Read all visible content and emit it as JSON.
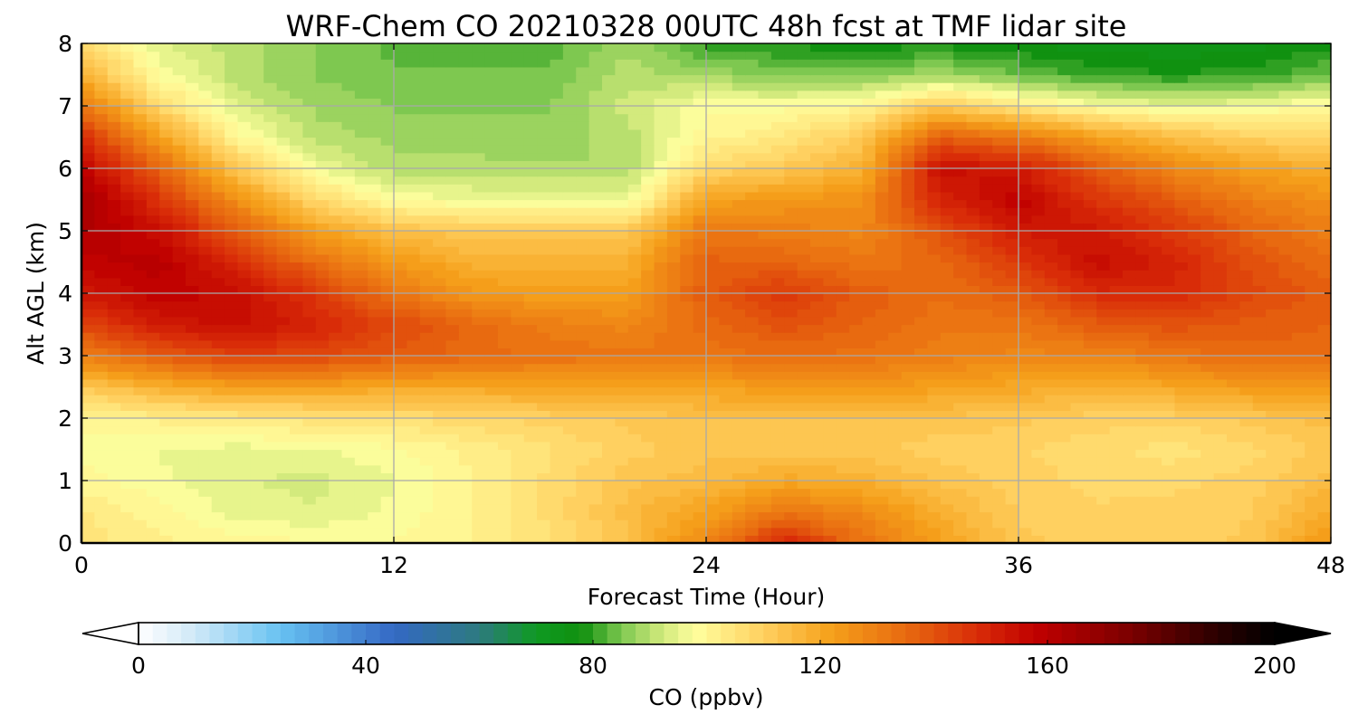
{
  "chart_data": {
    "type": "heatmap",
    "title": "WRF-Chem CO  20210328 00UTC 48h fcst at TMF lidar site",
    "xlabel": "Forecast Time (Hour)",
    "ylabel": "Alt AGL (km)",
    "xlim": [
      0,
      48
    ],
    "ylim": [
      0,
      8
    ],
    "xticks": [
      0,
      12,
      24,
      36,
      48
    ],
    "yticks": [
      0,
      1,
      2,
      3,
      4,
      5,
      6,
      7,
      8
    ],
    "grid": true,
    "x": [
      0,
      3,
      6,
      9,
      12,
      15,
      18,
      21,
      24,
      27,
      30,
      33,
      36,
      39,
      42,
      45,
      48
    ],
    "y": [
      0,
      0.5,
      1,
      1.5,
      2,
      2.5,
      3,
      3.5,
      4,
      4.5,
      5,
      5.5,
      6,
      6.5,
      7,
      7.5,
      8
    ],
    "z": [
      [
        105,
        102,
        100,
        99,
        99,
        101,
        106,
        113,
        128,
        150,
        133,
        122,
        112,
        110,
        110,
        112,
        125
      ],
      [
        104,
        100,
        95,
        94,
        97,
        101,
        107,
        115,
        122,
        132,
        128,
        118,
        111,
        109,
        110,
        111,
        120
      ],
      [
        100,
        97,
        94,
        93,
        96,
        101,
        107,
        113,
        115,
        120,
        118,
        113,
        110,
        108,
        108,
        110,
        115
      ],
      [
        98,
        96,
        95,
        96,
        98,
        102,
        106,
        110,
        113,
        112,
        112,
        110,
        109,
        107,
        105,
        108,
        112
      ],
      [
        100,
        102,
        104,
        105,
        106,
        108,
        110,
        112,
        113,
        113,
        113,
        113,
        112,
        110,
        110,
        112,
        115
      ],
      [
        112,
        118,
        122,
        122,
        120,
        120,
        121,
        122,
        122,
        123,
        124,
        122,
        120,
        118,
        120,
        123,
        125
      ],
      [
        130,
        138,
        143,
        142,
        138,
        135,
        133,
        132,
        132,
        134,
        133,
        130,
        128,
        128,
        132,
        135,
        135
      ],
      [
        142,
        152,
        155,
        150,
        142,
        135,
        130,
        128,
        135,
        140,
        136,
        132,
        132,
        138,
        140,
        138,
        136
      ],
      [
        152,
        158,
        155,
        145,
        132,
        124,
        122,
        122,
        138,
        145,
        138,
        134,
        138,
        148,
        148,
        142,
        137
      ],
      [
        158,
        160,
        148,
        134,
        124,
        118,
        117,
        118,
        137,
        136,
        132,
        135,
        145,
        155,
        150,
        140,
        134
      ],
      [
        162,
        155,
        138,
        122,
        114,
        112,
        112,
        112,
        132,
        130,
        128,
        140,
        152,
        152,
        145,
        136,
        130
      ],
      [
        165,
        146,
        126,
        108,
        98,
        96,
        95,
        95,
        122,
        124,
        126,
        150,
        158,
        146,
        138,
        130,
        126
      ],
      [
        158,
        136,
        112,
        96,
        90,
        90,
        89,
        89,
        108,
        112,
        118,
        155,
        152,
        138,
        128,
        122,
        118
      ],
      [
        148,
        122,
        100,
        90,
        88,
        87,
        87,
        90,
        100,
        104,
        112,
        138,
        132,
        122,
        115,
        110,
        108
      ],
      [
        132,
        108,
        94,
        88,
        86,
        86,
        86,
        92,
        98,
        98,
        100,
        112,
        104,
        98,
        95,
        96,
        100
      ],
      [
        118,
        98,
        90,
        86,
        84,
        84,
        84,
        90,
        88,
        86,
        86,
        88,
        84,
        80,
        79,
        80,
        84
      ],
      [
        108,
        94,
        90,
        86,
        83,
        82,
        82,
        88,
        80,
        78,
        77,
        78,
        76,
        75,
        74,
        75,
        78
      ]
    ],
    "colorbar": {
      "label": "CO  (ppbv)",
      "min": 0,
      "max": 200,
      "ticks": [
        0,
        40,
        80,
        120,
        160,
        200
      ],
      "extend": "both",
      "orientation": "horizontal",
      "location": "bottom",
      "colormap_stops": [
        {
          "value": 0,
          "color": "#ffffff"
        },
        {
          "value": 10,
          "color": "#cfe8f7"
        },
        {
          "value": 25,
          "color": "#67c2f2"
        },
        {
          "value": 45,
          "color": "#3468c4"
        },
        {
          "value": 60,
          "color": "#2d7a7f"
        },
        {
          "value": 70,
          "color": "#0f9a22"
        },
        {
          "value": 78,
          "color": "#10900f"
        },
        {
          "value": 85,
          "color": "#7ec850"
        },
        {
          "value": 92,
          "color": "#cfe87a"
        },
        {
          "value": 98,
          "color": "#ffff9e"
        },
        {
          "value": 110,
          "color": "#ffd060"
        },
        {
          "value": 122,
          "color": "#f5a01a"
        },
        {
          "value": 135,
          "color": "#e86a10"
        },
        {
          "value": 148,
          "color": "#d82a08"
        },
        {
          "value": 158,
          "color": "#c00000"
        },
        {
          "value": 175,
          "color": "#7a0000"
        },
        {
          "value": 190,
          "color": "#2a0000"
        },
        {
          "value": 200,
          "color": "#000000"
        }
      ]
    }
  }
}
